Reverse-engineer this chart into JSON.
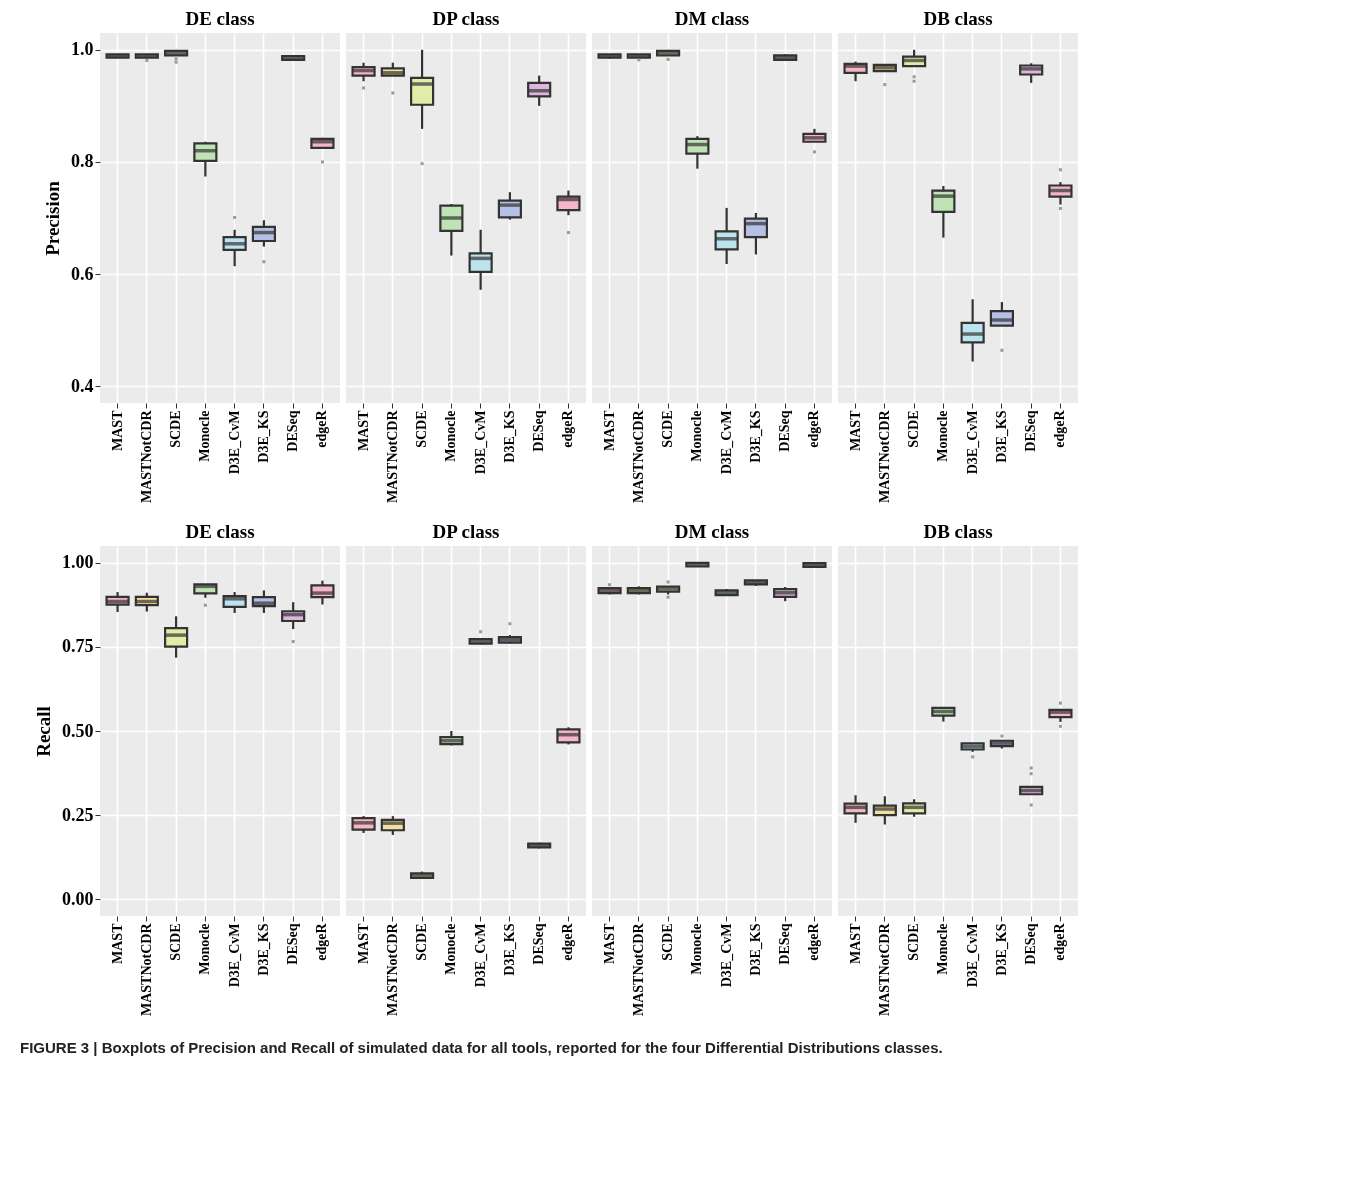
{
  "chart_data": [
    {
      "type": "box",
      "title": "DE class",
      "ylabel": "Precision",
      "categories": [
        "MAST",
        "MASTNotCDR",
        "SCDE",
        "Monocle",
        "D3E_CvM",
        "D3E_KS",
        "DESeq",
        "edgeR"
      ],
      "colors": [
        "#f4b6c2",
        "#f3e0a0",
        "#e1eca8",
        "#bfe3b4",
        "#bde4ee",
        "#b6c0e6",
        "#dcb6dc",
        "#f4b6c8"
      ],
      "ylim": [
        0.37,
        1.03
      ],
      "yticks": [
        {
          "value": 0.4,
          "label": "0.4"
        },
        {
          "value": 0.6,
          "label": "0.6"
        },
        {
          "value": 0.8,
          "label": "0.8"
        },
        {
          "value": 1.0,
          "label": "1.0"
        }
      ],
      "grid": true,
      "boxes": [
        {
          "low": 0.985,
          "q1": 0.986,
          "median": 0.989,
          "q3": 0.992,
          "high": 0.993
        },
        {
          "low": 0.985,
          "q1": 0.986,
          "median": 0.989,
          "q3": 0.992,
          "high": 0.993,
          "outliers": [
            0.981
          ]
        },
        {
          "low": 0.99,
          "q1": 0.99,
          "median": 0.994,
          "q3": 0.998,
          "high": 1.0,
          "outliers": [
            0.984,
            0.978
          ]
        },
        {
          "low": 0.774,
          "q1": 0.802,
          "median": 0.82,
          "q3": 0.833,
          "high": 0.836
        },
        {
          "low": 0.614,
          "q1": 0.643,
          "median": 0.654,
          "q3": 0.666,
          "high": 0.679,
          "outliers": [
            0.701
          ]
        },
        {
          "low": 0.649,
          "q1": 0.659,
          "median": 0.674,
          "q3": 0.684,
          "high": 0.696,
          "outliers": [
            0.622
          ]
        },
        {
          "low": 0.981,
          "q1": 0.982,
          "median": 0.985,
          "q3": 0.989,
          "high": 0.99
        },
        {
          "low": 0.825,
          "q1": 0.825,
          "median": 0.836,
          "q3": 0.841,
          "high": 0.843,
          "outliers": [
            0.8
          ]
        }
      ]
    },
    {
      "type": "box",
      "title": "DP class",
      "categories": [
        "MAST",
        "MASTNotCDR",
        "SCDE",
        "Monocle",
        "D3E_CvM",
        "D3E_KS",
        "DESeq",
        "edgeR"
      ],
      "colors": [
        "#f4b6c2",
        "#f3e0a0",
        "#e1eca8",
        "#bfe3b4",
        "#bde4ee",
        "#b6c0e6",
        "#dcb6dc",
        "#f4b6c8"
      ],
      "ylim": [
        0.37,
        1.03
      ],
      "yticks": [
        0.4,
        0.6,
        0.8,
        1.0
      ],
      "grid": true,
      "tick_labels": "x",
      "boxes": [
        {
          "low": 0.944,
          "q1": 0.954,
          "median": 0.963,
          "q3": 0.969,
          "high": 0.977,
          "outliers": [
            0.932
          ]
        },
        {
          "low": 0.954,
          "q1": 0.954,
          "median": 0.959,
          "q3": 0.967,
          "high": 0.977,
          "outliers": [
            0.923
          ]
        },
        {
          "low": 0.859,
          "q1": 0.902,
          "median": 0.939,
          "q3": 0.95,
          "high": 1.0,
          "outliers": [
            0.797
          ]
        },
        {
          "low": 0.633,
          "q1": 0.677,
          "median": 0.7,
          "q3": 0.722,
          "high": 0.725
        },
        {
          "low": 0.572,
          "q1": 0.604,
          "median": 0.628,
          "q3": 0.637,
          "high": 0.679
        },
        {
          "low": 0.697,
          "q1": 0.701,
          "median": 0.723,
          "q3": 0.731,
          "high": 0.746
        },
        {
          "low": 0.9,
          "q1": 0.917,
          "median": 0.927,
          "q3": 0.941,
          "high": 0.954
        },
        {
          "low": 0.705,
          "q1": 0.714,
          "median": 0.733,
          "q3": 0.738,
          "high": 0.749,
          "outliers": [
            0.674
          ]
        }
      ]
    },
    {
      "type": "box",
      "title": "DM class",
      "categories": [
        "MAST",
        "MASTNotCDR",
        "SCDE",
        "Monocle",
        "D3E_CvM",
        "D3E_KS",
        "DESeq",
        "edgeR"
      ],
      "colors": [
        "#f4b6c2",
        "#f3e0a0",
        "#e1eca8",
        "#bfe3b4",
        "#bde4ee",
        "#b6c0e6",
        "#dcb6dc",
        "#f4b6c8"
      ],
      "ylim": [
        0.37,
        1.03
      ],
      "yticks": [
        0.4,
        0.6,
        0.8,
        1.0
      ],
      "grid": true,
      "tick_labels": "x",
      "boxes": [
        {
          "low": 0.984,
          "q1": 0.986,
          "median": 0.989,
          "q3": 0.992,
          "high": 0.992
        },
        {
          "low": 0.984,
          "q1": 0.986,
          "median": 0.989,
          "q3": 0.992,
          "high": 0.992,
          "outliers": [
            0.982
          ]
        },
        {
          "low": 0.99,
          "q1": 0.99,
          "median": 0.995,
          "q3": 0.998,
          "high": 1.0,
          "outliers": [
            0.983
          ]
        },
        {
          "low": 0.788,
          "q1": 0.815,
          "median": 0.831,
          "q3": 0.841,
          "high": 0.846
        },
        {
          "low": 0.618,
          "q1": 0.644,
          "median": 0.663,
          "q3": 0.676,
          "high": 0.718
        },
        {
          "low": 0.635,
          "q1": 0.666,
          "median": 0.69,
          "q3": 0.699,
          "high": 0.709
        },
        {
          "low": 0.981,
          "q1": 0.982,
          "median": 0.986,
          "q3": 0.99,
          "high": 0.992
        },
        {
          "low": 0.836,
          "q1": 0.836,
          "median": 0.843,
          "q3": 0.85,
          "high": 0.859,
          "outliers": [
            0.818
          ]
        }
      ]
    },
    {
      "type": "box",
      "title": "DB class",
      "categories": [
        "MAST",
        "MASTNotCDR",
        "SCDE",
        "Monocle",
        "D3E_CvM",
        "D3E_KS",
        "DESeq",
        "edgeR"
      ],
      "colors": [
        "#f4b6c2",
        "#f3e0a0",
        "#e1eca8",
        "#bfe3b4",
        "#bde4ee",
        "#b6c0e6",
        "#dcb6dc",
        "#f4b6c8"
      ],
      "ylim": [
        0.37,
        1.03
      ],
      "yticks": [
        0.4,
        0.6,
        0.8,
        1.0
      ],
      "grid": true,
      "tick_labels": "x",
      "boxes": [
        {
          "low": 0.944,
          "q1": 0.959,
          "median": 0.971,
          "q3": 0.975,
          "high": 0.979
        },
        {
          "low": 0.962,
          "q1": 0.962,
          "median": 0.968,
          "q3": 0.973,
          "high": 0.974,
          "outliers": [
            0.938
          ]
        },
        {
          "low": 0.971,
          "q1": 0.971,
          "median": 0.981,
          "q3": 0.988,
          "high": 1.0,
          "outliers": [
            0.952,
            0.944
          ]
        },
        {
          "low": 0.665,
          "q1": 0.711,
          "median": 0.739,
          "q3": 0.749,
          "high": 0.757
        },
        {
          "low": 0.444,
          "q1": 0.478,
          "median": 0.493,
          "q3": 0.513,
          "high": 0.555
        },
        {
          "low": 0.508,
          "q1": 0.508,
          "median": 0.518,
          "q3": 0.534,
          "high": 0.55,
          "outliers": [
            0.464
          ]
        },
        {
          "low": 0.941,
          "q1": 0.956,
          "median": 0.966,
          "q3": 0.972,
          "high": 0.976
        },
        {
          "low": 0.724,
          "q1": 0.738,
          "median": 0.749,
          "q3": 0.758,
          "high": 0.764,
          "outliers": [
            0.786,
            0.717
          ]
        }
      ]
    },
    {
      "type": "box",
      "title": "DE class",
      "ylabel": "Recall",
      "categories": [
        "MAST",
        "MASTNotCDR",
        "SCDE",
        "Monocle",
        "D3E_CvM",
        "D3E_KS",
        "DESeq",
        "edgeR"
      ],
      "colors": [
        "#f4b6c2",
        "#f3e0a0",
        "#e1eca8",
        "#bfe3b4",
        "#bde4ee",
        "#b6c0e6",
        "#dcb6dc",
        "#f4b6c8"
      ],
      "ylim": [
        -0.05,
        1.05
      ],
      "yticks": [
        {
          "value": 0,
          "label": "0.00"
        },
        {
          "value": 0.25,
          "label": "0.25"
        },
        {
          "value": 0.5,
          "label": "0.50"
        },
        {
          "value": 0.75,
          "label": "0.75"
        },
        {
          "value": 1.0,
          "label": "1.00"
        }
      ],
      "grid": true,
      "boxes": [
        {
          "low": 0.854,
          "q1": 0.876,
          "median": 0.885,
          "q3": 0.899,
          "high": 0.913
        },
        {
          "low": 0.855,
          "q1": 0.874,
          "median": 0.885,
          "q3": 0.899,
          "high": 0.911
        },
        {
          "low": 0.718,
          "q1": 0.751,
          "median": 0.785,
          "q3": 0.806,
          "high": 0.841
        },
        {
          "low": 0.896,
          "q1": 0.909,
          "median": 0.93,
          "q3": 0.936,
          "high": 0.936,
          "outliers": [
            0.874
          ]
        },
        {
          "low": 0.851,
          "q1": 0.869,
          "median": 0.893,
          "q3": 0.901,
          "high": 0.913
        },
        {
          "low": 0.851,
          "q1": 0.871,
          "median": 0.88,
          "q3": 0.898,
          "high": 0.918
        },
        {
          "low": 0.803,
          "q1": 0.827,
          "median": 0.846,
          "q3": 0.856,
          "high": 0.883,
          "outliers": [
            0.766
          ]
        },
        {
          "low": 0.876,
          "q1": 0.898,
          "median": 0.91,
          "q3": 0.933,
          "high": 0.947
        }
      ]
    },
    {
      "type": "box",
      "title": "DP class",
      "categories": [
        "MAST",
        "MASTNotCDR",
        "SCDE",
        "Monocle",
        "D3E_CvM",
        "D3E_KS",
        "DESeq",
        "edgeR"
      ],
      "colors": [
        "#f4b6c2",
        "#f3e0a0",
        "#e1eca8",
        "#bfe3b4",
        "#bde4ee",
        "#b6c0e6",
        "#dcb6dc",
        "#f4b6c8"
      ],
      "ylim": [
        -0.05,
        1.05
      ],
      "yticks": [
        0,
        0.25,
        0.5,
        0.75,
        1.0
      ],
      "grid": true,
      "tick_labels": "x",
      "boxes": [
        {
          "low": 0.197,
          "q1": 0.207,
          "median": 0.227,
          "q3": 0.241,
          "high": 0.247
        },
        {
          "low": 0.191,
          "q1": 0.205,
          "median": 0.226,
          "q3": 0.236,
          "high": 0.247
        },
        {
          "low": 0.06,
          "q1": 0.063,
          "median": 0.07,
          "q3": 0.077,
          "high": 0.082
        },
        {
          "low": 0.457,
          "q1": 0.461,
          "median": 0.471,
          "q3": 0.482,
          "high": 0.5
        },
        {
          "low": 0.757,
          "q1": 0.76,
          "median": 0.766,
          "q3": 0.773,
          "high": 0.775,
          "outliers": [
            0.795
          ]
        },
        {
          "low": 0.76,
          "q1": 0.763,
          "median": 0.771,
          "q3": 0.779,
          "high": 0.785,
          "outliers": [
            0.819
          ]
        },
        {
          "low": 0.151,
          "q1": 0.154,
          "median": 0.16,
          "q3": 0.165,
          "high": 0.168
        },
        {
          "low": 0.46,
          "q1": 0.466,
          "median": 0.489,
          "q3": 0.505,
          "high": 0.511
        }
      ]
    },
    {
      "type": "box",
      "title": "DM class",
      "categories": [
        "MAST",
        "MASTNotCDR",
        "SCDE",
        "Monocle",
        "D3E_CvM",
        "D3E_KS",
        "DESeq",
        "edgeR"
      ],
      "colors": [
        "#f4b6c2",
        "#f3e0a0",
        "#e1eca8",
        "#bfe3b4",
        "#bde4ee",
        "#b6c0e6",
        "#dcb6dc",
        "#f4b6c8"
      ],
      "ylim": [
        -0.05,
        1.05
      ],
      "yticks": [
        0,
        0.25,
        0.5,
        0.75,
        1.0
      ],
      "grid": true,
      "tick_labels": "x",
      "boxes": [
        {
          "low": 0.906,
          "q1": 0.91,
          "median": 0.917,
          "q3": 0.925,
          "high": 0.928,
          "outliers": [
            0.935
          ]
        },
        {
          "low": 0.906,
          "q1": 0.91,
          "median": 0.917,
          "q3": 0.925,
          "high": 0.93
        },
        {
          "low": 0.906,
          "q1": 0.914,
          "median": 0.922,
          "q3": 0.929,
          "high": 0.929,
          "outliers": [
            0.943,
            0.898
          ]
        },
        {
          "low": 0.989,
          "q1": 0.989,
          "median": 0.995,
          "q3": 1.0,
          "high": 1.0
        },
        {
          "low": 0.904,
          "q1": 0.904,
          "median": 0.911,
          "q3": 0.918,
          "high": 0.922
        },
        {
          "low": 0.931,
          "q1": 0.936,
          "median": 0.942,
          "q3": 0.948,
          "high": 0.948
        },
        {
          "low": 0.886,
          "q1": 0.899,
          "median": 0.911,
          "q3": 0.922,
          "high": 0.928
        },
        {
          "low": 0.988,
          "q1": 0.988,
          "median": 0.994,
          "q3": 0.999,
          "high": 1.0
        }
      ]
    },
    {
      "type": "box",
      "title": "DB class",
      "categories": [
        "MAST",
        "MASTNotCDR",
        "SCDE",
        "Monocle",
        "D3E_CvM",
        "D3E_KS",
        "DESeq",
        "edgeR"
      ],
      "colors": [
        "#f4b6c2",
        "#f3e0a0",
        "#e1eca8",
        "#bfe3b4",
        "#bde4ee",
        "#b6c0e6",
        "#dcb6dc",
        "#f4b6c8"
      ],
      "ylim": [
        -0.05,
        1.05
      ],
      "yticks": [
        0,
        0.25,
        0.5,
        0.75,
        1.0
      ],
      "grid": true,
      "tick_labels": "x",
      "boxes": [
        {
          "low": 0.227,
          "q1": 0.255,
          "median": 0.273,
          "q3": 0.284,
          "high": 0.309
        },
        {
          "low": 0.222,
          "q1": 0.25,
          "median": 0.268,
          "q3": 0.278,
          "high": 0.306
        },
        {
          "low": 0.245,
          "q1": 0.255,
          "median": 0.273,
          "q3": 0.285,
          "high": 0.297
        },
        {
          "low": 0.528,
          "q1": 0.546,
          "median": 0.558,
          "q3": 0.569,
          "high": 0.569
        },
        {
          "low": 0.438,
          "q1": 0.445,
          "median": 0.454,
          "q3": 0.463,
          "high": 0.463,
          "outliers": [
            0.423
          ]
        },
        {
          "low": 0.448,
          "q1": 0.455,
          "median": 0.464,
          "q3": 0.471,
          "high": 0.471,
          "outliers": [
            0.485
          ]
        },
        {
          "low": 0.312,
          "q1": 0.312,
          "median": 0.323,
          "q3": 0.334,
          "high": 0.334,
          "outliers": [
            0.39,
            0.373,
            0.28
          ]
        },
        {
          "low": 0.527,
          "q1": 0.541,
          "median": 0.556,
          "q3": 0.563,
          "high": 0.564,
          "outliers": [
            0.583,
            0.514
          ]
        }
      ],
      "annotations": [
        "FIGURE 3 | Boxplots of Precision and Recall of simulated data for all tools, reported for the four Differential Distributions classes."
      ]
    }
  ]
}
